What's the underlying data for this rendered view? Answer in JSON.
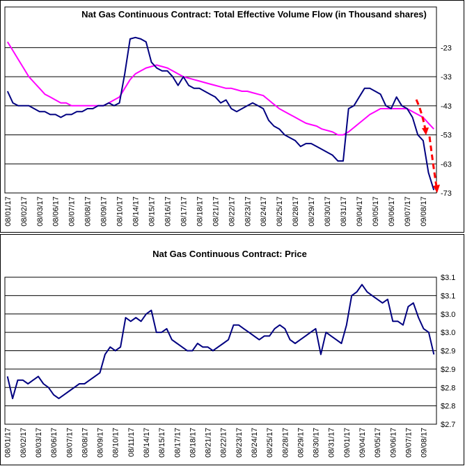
{
  "chart_data": [
    {
      "type": "line",
      "title": "Nat Gas Continuous Contract: Total Effective Volume Flow (in Thousand shares)",
      "categories": [
        "08/01/17",
        null,
        null,
        "08/02/17",
        null,
        null,
        "08/03/17",
        null,
        null,
        "08/06/17",
        null,
        null,
        "08/07/17",
        null,
        null,
        "08/08/17",
        null,
        null,
        "08/09/17",
        null,
        null,
        "08/10/17",
        null,
        null,
        "08/14/17",
        null,
        null,
        "08/15/17",
        null,
        null,
        "08/16/17",
        null,
        null,
        "08/17/17",
        null,
        null,
        "08/18/17",
        null,
        null,
        "08/21/17",
        null,
        null,
        "08/22/17",
        null,
        null,
        "08/23/17",
        null,
        null,
        "08/24/17",
        null,
        null,
        "08/25/17",
        null,
        null,
        "08/28/17",
        null,
        null,
        "08/29/17",
        null,
        null,
        "08/30/17",
        null,
        null,
        "08/31/17",
        null,
        null,
        "09/04/17",
        null,
        null,
        "09/05/17",
        null,
        null,
        "09/06/17",
        null,
        null,
        "09/07/17",
        null,
        null,
        "09/08/17",
        null,
        null
      ],
      "series": [
        {
          "color": "#000080",
          "values": [
            -38,
            -42,
            -43,
            -43,
            -43,
            -44,
            -45,
            -45,
            -46,
            -46,
            -47,
            -46,
            -46,
            -45,
            -45,
            -44,
            -44,
            -43,
            -43,
            -42,
            -43,
            -42,
            -32,
            -20,
            -19.5,
            -20,
            -21,
            -28,
            -30,
            -31,
            -31,
            -33,
            -36,
            -33,
            -36,
            -37,
            -37,
            -38,
            -39,
            -40,
            -42,
            -41,
            -44,
            -45,
            -44,
            -43,
            -42,
            -43,
            -44,
            -48,
            -50,
            -51,
            -53,
            -54,
            -55,
            -57,
            -56,
            -56,
            -57,
            -58,
            -59,
            -60,
            -62,
            -62,
            -44,
            -43,
            -40,
            -37,
            -37,
            -38,
            -39,
            -43,
            -44,
            -40,
            -43,
            -44,
            -47,
            -53,
            -55,
            -66,
            -72
          ]
        },
        {
          "color": "#ff00ff",
          "values": [
            -21,
            -24,
            -27,
            -30,
            -33,
            -35,
            -37,
            -39,
            -40,
            -41,
            -42,
            -42,
            -43,
            -43,
            -43,
            -43,
            -43,
            -43,
            -43,
            -42,
            -41,
            -40,
            -37,
            -34,
            -32,
            -31,
            -30,
            -29.5,
            -29,
            -29.5,
            -30,
            -31,
            -32,
            -33,
            -33.5,
            -34,
            -34.5,
            -35,
            -35.5,
            -36,
            -36.5,
            -37,
            -37,
            -37.5,
            -38,
            -38,
            -38.5,
            -39,
            -39.5,
            -41,
            -42.5,
            -44,
            -45,
            -46,
            -47,
            -48,
            -49,
            -49.5,
            -50,
            -51,
            -51.5,
            -52,
            -53,
            -53,
            -52,
            -50.5,
            -49,
            -47.5,
            -46,
            -45,
            -44,
            -44,
            -44,
            -44,
            -44,
            -44,
            -45,
            -46,
            -47,
            -49,
            -51
          ]
        }
      ],
      "ylim": [
        -73,
        -9
      ],
      "yticks": [
        -23,
        -33,
        -43,
        -53,
        -63,
        -73
      ],
      "grid": true
    },
    {
      "type": "line",
      "title": "Nat Gas Continuous Contract: Price",
      "categories": [
        "08/01/17",
        null,
        null,
        "08/02/17",
        null,
        null,
        "08/03/17",
        null,
        null,
        "08/06/17",
        null,
        null,
        "08/07/17",
        null,
        null,
        "08/08/17",
        null,
        null,
        "08/09/17",
        null,
        null,
        "08/10/17",
        null,
        null,
        "08/11/17",
        null,
        null,
        "08/14/17",
        null,
        null,
        "08/15/17",
        null,
        null,
        "08/17/17",
        null,
        null,
        "08/18/17",
        null,
        null,
        "08/21/17",
        null,
        null,
        "08/22/17",
        null,
        null,
        "08/23/17",
        null,
        null,
        "08/24/17",
        null,
        null,
        "08/25/17",
        null,
        null,
        "08/28/17",
        null,
        null,
        "08/29/17",
        null,
        null,
        "08/30/17",
        null,
        null,
        "08/31/17",
        null,
        null,
        "09/01/17",
        null,
        null,
        "09/04/17",
        null,
        null,
        "09/05/17",
        null,
        null,
        "09/06/17",
        null,
        null,
        "09/07/17",
        null,
        null,
        "09/08/17",
        null,
        null
      ],
      "series": [
        {
          "color": "#000080",
          "values": [
            2.83,
            2.77,
            2.82,
            2.82,
            2.81,
            2.82,
            2.83,
            2.81,
            2.8,
            2.78,
            2.77,
            2.78,
            2.79,
            2.8,
            2.81,
            2.81,
            2.82,
            2.83,
            2.84,
            2.89,
            2.91,
            2.9,
            2.91,
            2.99,
            2.98,
            2.99,
            2.98,
            3.0,
            3.01,
            2.95,
            2.95,
            2.96,
            2.93,
            2.92,
            2.91,
            2.9,
            2.9,
            2.92,
            2.91,
            2.91,
            2.9,
            2.91,
            2.92,
            2.93,
            2.97,
            2.97,
            2.96,
            2.95,
            2.94,
            2.93,
            2.94,
            2.94,
            2.96,
            2.97,
            2.96,
            2.93,
            2.92,
            2.93,
            2.94,
            2.95,
            2.96,
            2.89,
            2.95,
            2.94,
            2.93,
            2.92,
            2.97,
            3.05,
            3.06,
            3.08,
            3.06,
            3.05,
            3.04,
            3.03,
            3.04,
            2.98,
            2.98,
            2.97,
            3.02,
            3.03,
            2.99,
            2.96,
            2.95,
            2.89
          ]
        }
      ],
      "ylim": [
        2.7,
        3.1
      ],
      "yticks": [
        {
          "value": 3.1,
          "label": "$3.1"
        },
        {
          "value": 3.05,
          "label": "$3.1"
        },
        {
          "value": 3.0,
          "label": "$3.0"
        },
        {
          "value": 2.95,
          "label": "$3.0"
        },
        {
          "value": 2.9,
          "label": "$2.9"
        },
        {
          "value": 2.85,
          "label": "$2.9"
        },
        {
          "value": 2.8,
          "label": "$2.8"
        },
        {
          "value": 2.75,
          "label": "$2.8"
        },
        {
          "value": 2.7,
          "label": "$2.7"
        }
      ],
      "grid": true
    }
  ]
}
